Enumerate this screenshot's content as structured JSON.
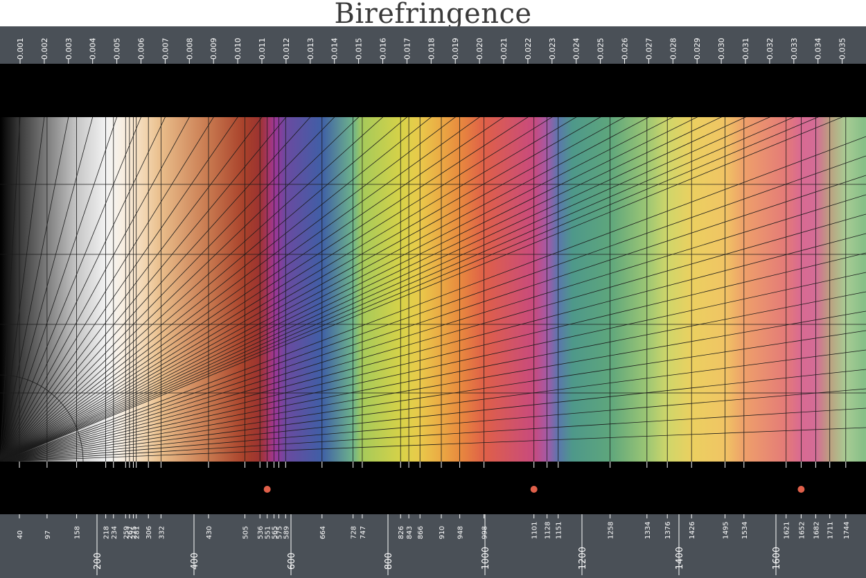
{
  "title": "Birefringence",
  "chart_data": {
    "type": "interference_color_chart",
    "title": "Birefringence",
    "birefringence_ticks": [
      "0.001",
      "0.002",
      "0.003",
      "0.004",
      "0.005",
      "0.006",
      "0.007",
      "0.008",
      "0.009",
      "0.010",
      "0.011",
      "0.012",
      "0.013",
      "0.014",
      "0.015",
      "0.016",
      "0.017",
      "0.018",
      "0.019",
      "0.020",
      "0.021",
      "0.022",
      "0.023",
      "0.024",
      "0.025",
      "0.026",
      "0.027",
      "0.028",
      "0.029",
      "0.030",
      "0.031",
      "0.032",
      "0.033",
      "0.034",
      "0.035"
    ],
    "retardation_labels": [
      "40",
      "97",
      "158",
      "218",
      "234",
      "259",
      "267",
      "275",
      "281",
      "306",
      "332",
      "430",
      "505",
      "536",
      "551",
      "565",
      "575",
      "589",
      "664",
      "728",
      "747",
      "826",
      "843",
      "866",
      "910",
      "948",
      "998",
      "1101",
      "1128",
      "1151",
      "1258",
      "1334",
      "1376",
      "1426",
      "1495",
      "1534",
      "1621",
      "1652",
      "1682",
      "1711",
      "1744"
    ],
    "retardation_axis_ticks": [
      "200",
      "400",
      "600",
      "800",
      "1000",
      "1200",
      "1400",
      "1600"
    ],
    "retardation_range": [
      0,
      1780
    ],
    "order_marks": [
      551,
      1101,
      1652
    ],
    "order_mark_color": "#e0604a",
    "color_bands": [
      {
        "at": 0,
        "color": "#000000"
      },
      {
        "at": 40,
        "color": "#3a3a3a"
      },
      {
        "at": 97,
        "color": "#7d7d7d"
      },
      {
        "at": 158,
        "color": "#c6c6c6"
      },
      {
        "at": 218,
        "color": "#f2f2f2"
      },
      {
        "at": 234,
        "color": "#f6f3ee"
      },
      {
        "at": 259,
        "color": "#f8ecdc"
      },
      {
        "at": 306,
        "color": "#f1d1a8"
      },
      {
        "at": 332,
        "color": "#e9bd8a"
      },
      {
        "at": 430,
        "color": "#c8794f"
      },
      {
        "at": 505,
        "color": "#a8402a"
      },
      {
        "at": 536,
        "color": "#9c3331"
      },
      {
        "at": 551,
        "color": "#a63560"
      },
      {
        "at": 565,
        "color": "#9e3693"
      },
      {
        "at": 575,
        "color": "#8c3b9a"
      },
      {
        "at": 589,
        "color": "#6b4aa0"
      },
      {
        "at": 664,
        "color": "#3f5fa6"
      },
      {
        "at": 728,
        "color": "#6eb48a"
      },
      {
        "at": 747,
        "color": "#a6ca5a"
      },
      {
        "at": 826,
        "color": "#d6d248"
      },
      {
        "at": 843,
        "color": "#e0d04a"
      },
      {
        "at": 866,
        "color": "#e9c94a"
      },
      {
        "at": 910,
        "color": "#eba944"
      },
      {
        "at": 948,
        "color": "#e88a3e"
      },
      {
        "at": 998,
        "color": "#df6048"
      },
      {
        "at": 1101,
        "color": "#c84a7e"
      },
      {
        "at": 1128,
        "color": "#a55aa6"
      },
      {
        "at": 1151,
        "color": "#5b76ad"
      },
      {
        "at": 1180,
        "color": "#4e988a"
      },
      {
        "at": 1258,
        "color": "#5ea67c"
      },
      {
        "at": 1334,
        "color": "#9cc674"
      },
      {
        "at": 1376,
        "color": "#cfd66a"
      },
      {
        "at": 1426,
        "color": "#ebd060"
      },
      {
        "at": 1495,
        "color": "#f0c464"
      },
      {
        "at": 1534,
        "color": "#eea06a"
      },
      {
        "at": 1621,
        "color": "#e47a78"
      },
      {
        "at": 1652,
        "color": "#d96a92"
      },
      {
        "at": 1682,
        "color": "#d46c96"
      },
      {
        "at": 1711,
        "color": "#bca080"
      },
      {
        "at": 1744,
        "color": "#a8cc94"
      },
      {
        "at": 1780,
        "color": "#88bf88"
      }
    ]
  }
}
